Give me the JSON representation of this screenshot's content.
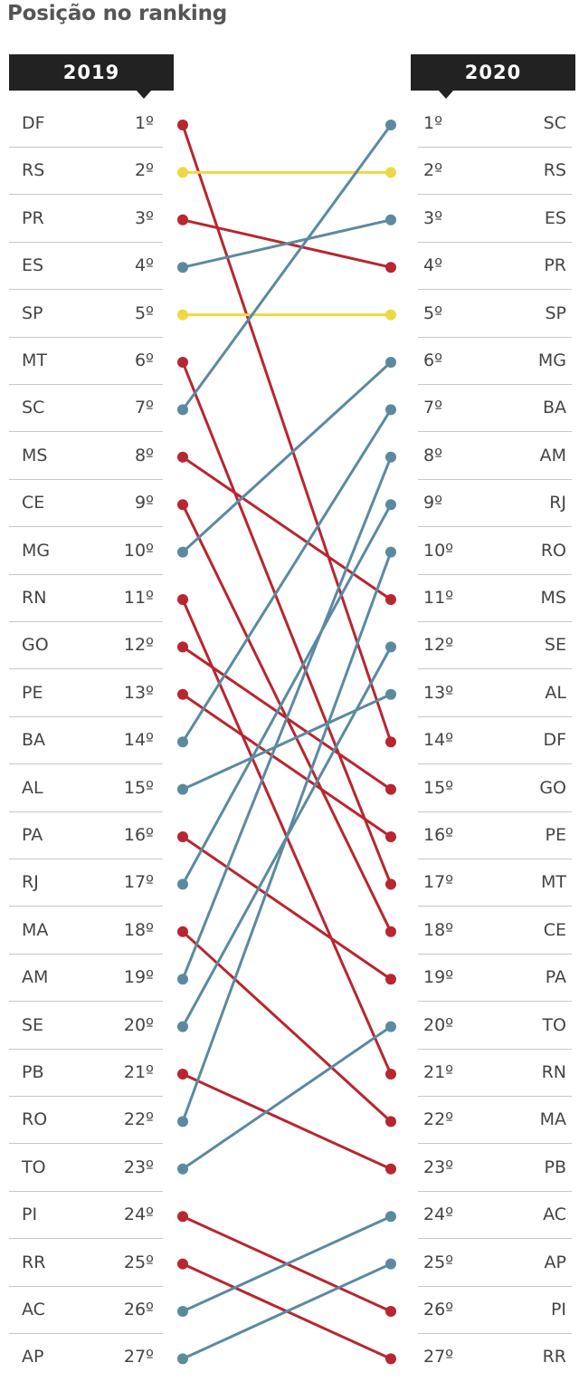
{
  "title": "Posição no ranking",
  "colors": {
    "up": "#5b8aa0",
    "down": "#b8262f",
    "same": "#f0d843"
  },
  "chart_data": {
    "type": "slope",
    "title": "Posição no ranking",
    "years": [
      "2019",
      "2020"
    ],
    "ranks": [
      "1º",
      "2º",
      "3º",
      "4º",
      "5º",
      "6º",
      "7º",
      "8º",
      "9º",
      "10º",
      "11º",
      "12º",
      "13º",
      "14º",
      "15º",
      "16º",
      "17º",
      "18º",
      "19º",
      "20º",
      "21º",
      "22º",
      "23º",
      "24º",
      "25º",
      "26º",
      "27º"
    ],
    "order_2019": [
      "DF",
      "RS",
      "PR",
      "ES",
      "SP",
      "MT",
      "SC",
      "MS",
      "CE",
      "MG",
      "RN",
      "GO",
      "PE",
      "BA",
      "AL",
      "PA",
      "RJ",
      "MA",
      "AM",
      "SE",
      "PB",
      "RO",
      "TO",
      "PI",
      "RR",
      "AC",
      "AP"
    ],
    "order_2020": [
      "SC",
      "RS",
      "ES",
      "PR",
      "SP",
      "MG",
      "BA",
      "AM",
      "RJ",
      "RO",
      "MS",
      "SE",
      "AL",
      "DF",
      "GO",
      "PE",
      "MT",
      "CE",
      "PA",
      "TO",
      "RN",
      "MA",
      "PB",
      "AC",
      "AP",
      "PI",
      "RR"
    ]
  }
}
